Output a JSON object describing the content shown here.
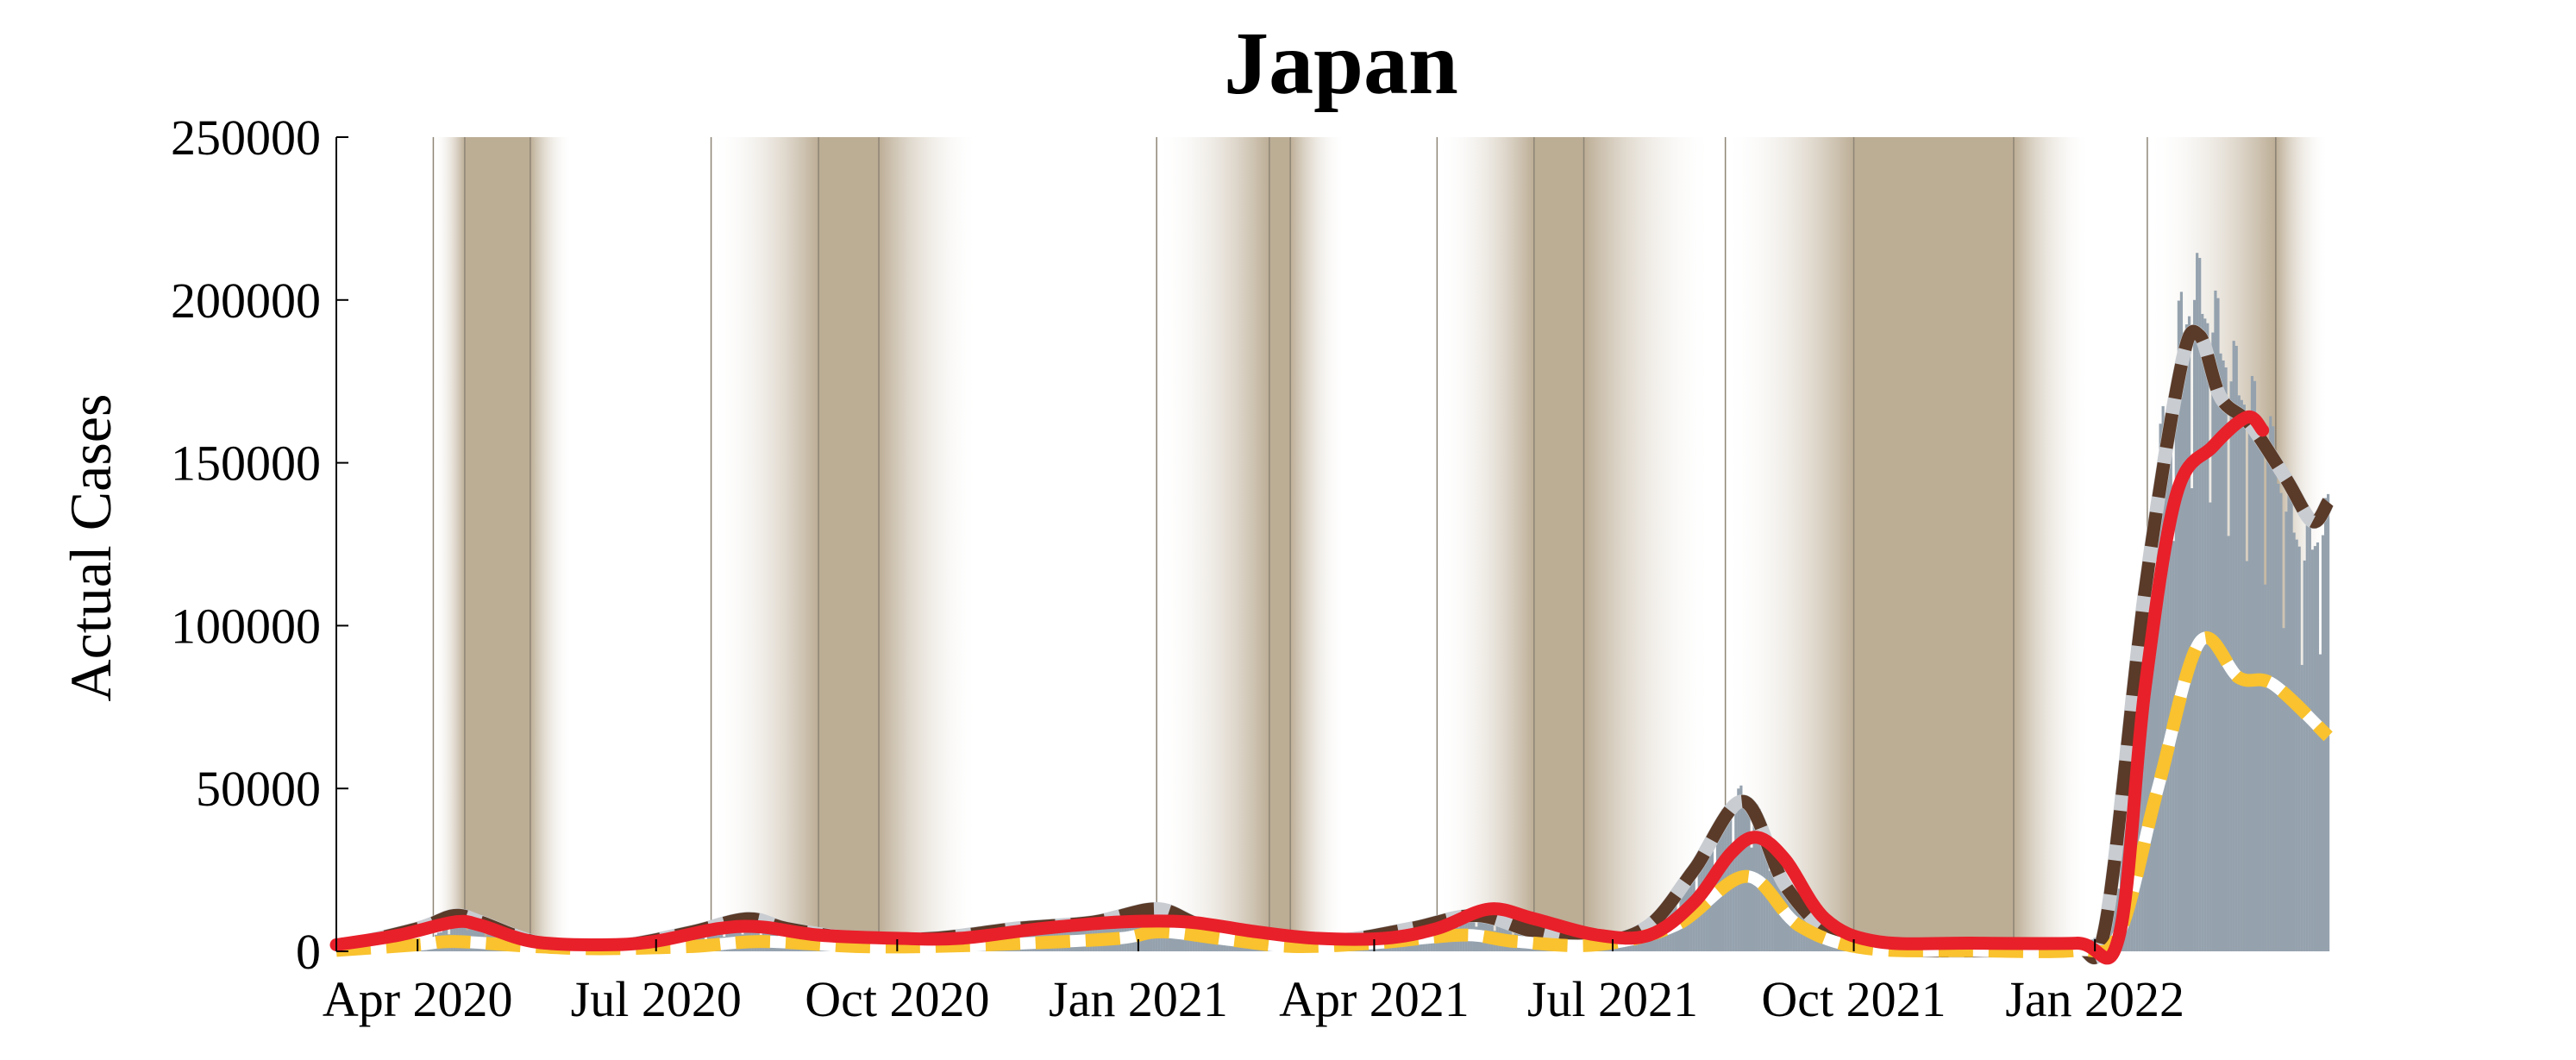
{
  "chart_data": {
    "type": "line",
    "title": "Japan",
    "xlabel": "",
    "ylabel": "Actual Cases",
    "ylim": [
      0,
      250000
    ],
    "y_ticks": [
      0,
      50000,
      100000,
      150000,
      200000,
      250000
    ],
    "y_tick_labels": [
      "0",
      "50000",
      "100000",
      "150000",
      "200000",
      "250000"
    ],
    "xlim": [
      "2020-03-01",
      "2022-04-10"
    ],
    "x_ticks": [
      "2020-04-01",
      "2020-07-01",
      "2020-10-01",
      "2021-01-01",
      "2021-04-01",
      "2021-07-01",
      "2021-10-01",
      "2022-01-01"
    ],
    "x_tick_labels": [
      "Apr 2020",
      "Jul 2020",
      "Oct 2020",
      "Jan 2021",
      "Apr 2021",
      "Jul 2021",
      "Oct 2021",
      "Jan 2022"
    ],
    "grid": false,
    "colors": {
      "bars": "#95a2ae",
      "band": "#bcad95",
      "divider": "#8e8576",
      "series_dark": "#5a3a28",
      "series_yellow": "#f9c22e",
      "series_red": "#e8202a"
    },
    "shaded_periods": [
      {
        "start": "2020-04-07",
        "dense_start": "2020-04-19",
        "dense_end": "2020-05-14",
        "end": "2020-05-30"
      },
      {
        "start": "2020-07-22",
        "dense_start": "2020-09-01",
        "dense_end": "2020-09-24",
        "end": "2020-11-01"
      },
      {
        "start": "2021-01-08",
        "dense_start": "2021-02-20",
        "dense_end": "2021-02-28",
        "end": "2021-03-21"
      },
      {
        "start": "2021-04-25",
        "dense_start": "2021-06-01",
        "dense_end": "2021-06-20",
        "end": "2021-08-08"
      },
      {
        "start": "2021-08-13",
        "dense_start": "2021-10-01",
        "dense_end": "2021-12-01",
        "end": "2021-12-30"
      },
      {
        "start": "2022-01-21",
        "dense_start": "2022-03-11",
        "dense_end": "2022-03-11",
        "end": "2022-03-31"
      }
    ],
    "bars": {
      "name": "",
      "points": [
        [
          "2020-03-01",
          200
        ],
        [
          "2020-03-20",
          500
        ],
        [
          "2020-04-05",
          3000
        ],
        [
          "2020-04-12",
          7000
        ],
        [
          "2020-04-20",
          9000
        ],
        [
          "2020-04-28",
          6000
        ],
        [
          "2020-05-10",
          2500
        ],
        [
          "2020-05-25",
          800
        ],
        [
          "2020-06-10",
          500
        ],
        [
          "2020-06-25",
          1200
        ],
        [
          "2020-07-10",
          3500
        ],
        [
          "2020-07-25",
          6000
        ],
        [
          "2020-08-05",
          7500
        ],
        [
          "2020-08-15",
          6500
        ],
        [
          "2020-08-28",
          4000
        ],
        [
          "2020-09-15",
          3000
        ],
        [
          "2020-10-05",
          2800
        ],
        [
          "2020-10-20",
          3200
        ],
        [
          "2020-11-05",
          5000
        ],
        [
          "2020-11-20",
          7500
        ],
        [
          "2020-12-05",
          8000
        ],
        [
          "2020-12-20",
          10000
        ],
        [
          "2021-01-05",
          14000
        ],
        [
          "2021-01-12",
          11000
        ],
        [
          "2021-01-25",
          7000
        ],
        [
          "2021-02-10",
          3500
        ],
        [
          "2021-02-25",
          2000
        ],
        [
          "2021-03-10",
          2200
        ],
        [
          "2021-03-25",
          3500
        ],
        [
          "2021-04-10",
          6000
        ],
        [
          "2021-04-25",
          9000
        ],
        [
          "2021-05-08",
          11000
        ],
        [
          "2021-05-20",
          8000
        ],
        [
          "2021-06-05",
          4000
        ],
        [
          "2021-06-20",
          2500
        ],
        [
          "2021-07-05",
          3500
        ],
        [
          "2021-07-20",
          9000
        ],
        [
          "2021-08-01",
          22000
        ],
        [
          "2021-08-13",
          42000
        ],
        [
          "2021-08-20",
          48000
        ],
        [
          "2021-08-28",
          38000
        ],
        [
          "2021-09-08",
          18000
        ],
        [
          "2021-09-20",
          6000
        ],
        [
          "2021-10-05",
          1500
        ],
        [
          "2021-10-25",
          400
        ],
        [
          "2021-11-15",
          300
        ],
        [
          "2021-12-05",
          300
        ],
        [
          "2021-12-25",
          800
        ],
        [
          "2022-01-05",
          6000
        ],
        [
          "2022-01-12",
          35000
        ],
        [
          "2022-01-19",
          90000
        ],
        [
          "2022-01-26",
          150000
        ],
        [
          "2022-02-02",
          185000
        ],
        [
          "2022-02-08",
          200000
        ],
        [
          "2022-02-15",
          190000
        ],
        [
          "2022-02-22",
          175000
        ],
        [
          "2022-03-01",
          165000
        ],
        [
          "2022-03-08",
          155000
        ],
        [
          "2022-03-15",
          135000
        ],
        [
          "2022-03-22",
          120000
        ],
        [
          "2022-03-31",
          130000
        ]
      ]
    },
    "series": [
      {
        "name": "",
        "color": "#5a3a28",
        "style": "dashed",
        "points": [
          [
            "2020-03-01",
            1000
          ],
          [
            "2020-04-01",
            7000
          ],
          [
            "2020-04-15",
            11000
          ],
          [
            "2020-04-25",
            9000
          ],
          [
            "2020-05-15",
            3000
          ],
          [
            "2020-06-01",
            1500
          ],
          [
            "2020-06-20",
            2000
          ],
          [
            "2020-07-15",
            6000
          ],
          [
            "2020-08-05",
            10000
          ],
          [
            "2020-08-20",
            7000
          ],
          [
            "2020-09-15",
            4000
          ],
          [
            "2020-10-15",
            4000
          ],
          [
            "2020-11-15",
            7000
          ],
          [
            "2020-12-15",
            9000
          ],
          [
            "2021-01-08",
            13000
          ],
          [
            "2021-01-25",
            8000
          ],
          [
            "2021-02-20",
            3500
          ],
          [
            "2021-03-20",
            3500
          ],
          [
            "2021-04-15",
            7000
          ],
          [
            "2021-05-10",
            11000
          ],
          [
            "2021-06-01",
            6000
          ],
          [
            "2021-06-25",
            3000
          ],
          [
            "2021-07-15",
            8000
          ],
          [
            "2021-08-01",
            25000
          ],
          [
            "2021-08-20",
            46000
          ],
          [
            "2021-09-05",
            20000
          ],
          [
            "2021-09-25",
            4000
          ],
          [
            "2021-10-20",
            500
          ],
          [
            "2021-12-01",
            300
          ],
          [
            "2021-12-25",
            1000
          ],
          [
            "2022-01-05",
            8000
          ],
          [
            "2022-01-20",
            110000
          ],
          [
            "2022-02-03",
            180000
          ],
          [
            "2022-02-10",
            189000
          ],
          [
            "2022-02-18",
            170000
          ],
          [
            "2022-03-01",
            162000
          ],
          [
            "2022-03-15",
            145000
          ],
          [
            "2022-03-25",
            132000
          ],
          [
            "2022-03-31",
            138000
          ]
        ]
      },
      {
        "name": "",
        "color": "#f9c22e",
        "style": "dashed",
        "points": [
          [
            "2020-03-01",
            300
          ],
          [
            "2020-04-01",
            2000
          ],
          [
            "2020-04-15",
            3000
          ],
          [
            "2020-05-15",
            1500
          ],
          [
            "2020-06-10",
            800
          ],
          [
            "2020-07-15",
            1500
          ],
          [
            "2020-08-10",
            3000
          ],
          [
            "2020-09-15",
            1500
          ],
          [
            "2020-10-15",
            1500
          ],
          [
            "2020-11-20",
            2500
          ],
          [
            "2020-12-25",
            4000
          ],
          [
            "2021-01-10",
            6000
          ],
          [
            "2021-02-05",
            3500
          ],
          [
            "2021-03-01",
            1500
          ],
          [
            "2021-04-01",
            2500
          ],
          [
            "2021-05-05",
            5000
          ],
          [
            "2021-05-25",
            3000
          ],
          [
            "2021-06-25",
            2000
          ],
          [
            "2021-07-25",
            8000
          ],
          [
            "2021-08-21",
            23000
          ],
          [
            "2021-09-10",
            8000
          ],
          [
            "2021-10-05",
            1000
          ],
          [
            "2021-11-15",
            200
          ],
          [
            "2021-12-25",
            300
          ],
          [
            "2022-01-10",
            5000
          ],
          [
            "2022-01-25",
            50000
          ],
          [
            "2022-02-10",
            95000
          ],
          [
            "2022-02-25",
            84000
          ],
          [
            "2022-03-10",
            82000
          ],
          [
            "2022-03-31",
            66000
          ]
        ]
      },
      {
        "name": "",
        "color": "#e8202a",
        "style": "solid",
        "points": [
          [
            "2020-03-01",
            2000
          ],
          [
            "2020-03-25",
            5000
          ],
          [
            "2020-04-15",
            9000
          ],
          [
            "2020-04-25",
            8000
          ],
          [
            "2020-05-15",
            3000
          ],
          [
            "2020-06-10",
            2000
          ],
          [
            "2020-06-30",
            3000
          ],
          [
            "2020-07-25",
            7000
          ],
          [
            "2020-08-10",
            7500
          ],
          [
            "2020-09-01",
            5000
          ],
          [
            "2020-10-01",
            4000
          ],
          [
            "2020-10-25",
            4000
          ],
          [
            "2020-11-25",
            7000
          ],
          [
            "2020-12-25",
            9000
          ],
          [
            "2021-01-20",
            9000
          ],
          [
            "2021-02-15",
            6000
          ],
          [
            "2021-03-10",
            4000
          ],
          [
            "2021-04-05",
            4000
          ],
          [
            "2021-04-25",
            7000
          ],
          [
            "2021-05-15",
            13000
          ],
          [
            "2021-06-01",
            10000
          ],
          [
            "2021-06-25",
            5000
          ],
          [
            "2021-07-15",
            5000
          ],
          [
            "2021-08-01",
            15000
          ],
          [
            "2021-08-15",
            30000
          ],
          [
            "2021-08-25",
            35000
          ],
          [
            "2021-09-05",
            28000
          ],
          [
            "2021-09-20",
            10000
          ],
          [
            "2021-10-10",
            3000
          ],
          [
            "2021-11-15",
            2500
          ],
          [
            "2021-12-25",
            2500
          ],
          [
            "2022-01-10",
            4000
          ],
          [
            "2022-01-20",
            80000
          ],
          [
            "2022-02-01",
            140000
          ],
          [
            "2022-02-15",
            155000
          ],
          [
            "2022-02-28",
            164000
          ],
          [
            "2022-03-06",
            160000
          ]
        ]
      }
    ]
  }
}
